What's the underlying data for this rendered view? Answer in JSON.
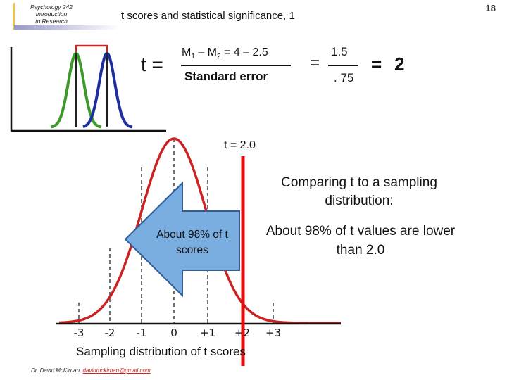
{
  "logo": {
    "lines": [
      "Psychology 242",
      "Introduction",
      "to Research"
    ]
  },
  "page_number": "18",
  "title": "t scores and statistical significance, 1",
  "formula": {
    "lhs": "t =",
    "numerator": {
      "m1": "M",
      "sub1": "1",
      "minus": " – M",
      "sub2": "2",
      "rest": " = 4 – 2.5"
    },
    "denominator": "Standard error",
    "equals1": "=",
    "value_numerator": "1.5",
    "value_denominator": ". 75",
    "equals2": "=",
    "result": "2"
  },
  "t_label": "t = 2.0",
  "comparing_text": "Comparing t to a sampling distribution:",
  "percent_text": "About 98% of t values are lower than 2.0",
  "arrow_text": "About 98% of t scores",
  "axis_ticks": [
    "-3",
    "-2",
    "-1",
    "0",
    "+1",
    "+2",
    "+3"
  ],
  "caption": "Sampling distribution of t scores",
  "footer": {
    "author": "Dr. David McKirnan,",
    "email": "davidmckirnan@gmail.com"
  },
  "colors": {
    "curve_red": "#cc2222",
    "cut_line": "#e01010",
    "arrow_fill": "#7aaee0",
    "arrow_stroke": "#2f5e99",
    "green": "#3c9a2a",
    "blue": "#1c2f9c"
  }
}
